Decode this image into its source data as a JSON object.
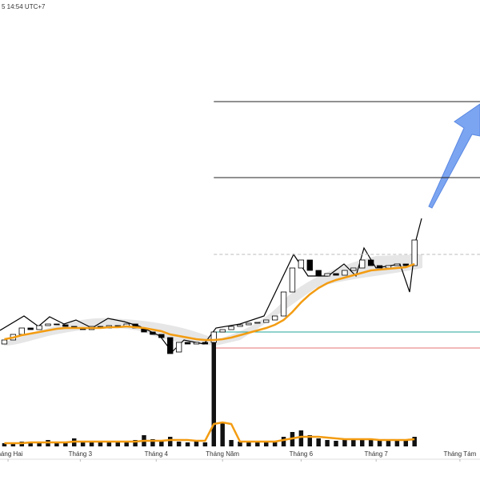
{
  "chart_data": {
    "type": "candlestick",
    "header": "5 14:54 UTC+7",
    "x": [
      0,
      1,
      2,
      3,
      4,
      5,
      6,
      7,
      8,
      9,
      10,
      11,
      12,
      13,
      14,
      15,
      16,
      17,
      18,
      19,
      20,
      21,
      22,
      23,
      24,
      25,
      26,
      27,
      28,
      29,
      30,
      31,
      32,
      33,
      34,
      35,
      36,
      37,
      38,
      39,
      40,
      41,
      42,
      43,
      44,
      45,
      46,
      47
    ],
    "open": [
      170,
      175,
      182,
      190,
      188,
      193,
      195,
      194,
      192,
      190,
      188,
      192,
      190,
      193,
      192,
      195,
      190,
      185,
      182,
      178,
      160,
      172,
      170,
      172,
      172,
      185,
      188,
      192,
      194,
      196,
      197,
      200,
      205,
      235,
      265,
      275,
      262,
      255,
      258,
      256,
      262,
      265,
      275,
      268,
      265,
      268,
      270,
      268
    ],
    "close": [
      175,
      182,
      190,
      188,
      193,
      195,
      194,
      192,
      190,
      188,
      192,
      190,
      193,
      192,
      195,
      190,
      185,
      182,
      178,
      158,
      172,
      170,
      172,
      170,
      185,
      188,
      192,
      194,
      196,
      197,
      200,
      205,
      235,
      265,
      275,
      262,
      255,
      258,
      256,
      262,
      265,
      275,
      268,
      265,
      268,
      270,
      268,
      300
    ],
    "ma": [
      176,
      178,
      181,
      183,
      185,
      187,
      189,
      190,
      190,
      190,
      190,
      190,
      191,
      191,
      192,
      191,
      190,
      188,
      186,
      182,
      180,
      178,
      176,
      175,
      175,
      176,
      178,
      181,
      184,
      187,
      190,
      194,
      200,
      210,
      222,
      232,
      240,
      246,
      250,
      253,
      256,
      259,
      262,
      263,
      264,
      265,
      266,
      270
    ],
    "volume": [
      4,
      5,
      6,
      5,
      4,
      8,
      5,
      6,
      10,
      7,
      6,
      5,
      7,
      6,
      5,
      8,
      14,
      9,
      7,
      12,
      6,
      5,
      6,
      5,
      140,
      30,
      8,
      6,
      5,
      6,
      7,
      6,
      12,
      18,
      20,
      14,
      10,
      8,
      7,
      8,
      9,
      8,
      10,
      7,
      8,
      9,
      7,
      12
    ],
    "volume_ma": [
      4,
      4,
      4,
      5,
      5,
      5,
      5,
      5,
      6,
      6,
      6,
      6,
      6,
      6,
      6,
      6,
      7,
      7,
      7,
      8,
      8,
      8,
      7,
      7,
      28,
      30,
      28,
      6,
      6,
      6,
      6,
      6,
      8,
      10,
      12,
      12,
      12,
      11,
      10,
      9,
      9,
      9,
      9,
      8,
      8,
      8,
      8,
      9
    ],
    "up_color": "#ffffff",
    "down_color": "#000000",
    "ma_color": "#f39c12",
    "price_lines": [
      {
        "value": 473,
        "color": "#222222"
      },
      {
        "value": 378,
        "color": "#222222"
      },
      {
        "value": 282,
        "color": "#bbbbbb"
      },
      {
        "value": 185,
        "color": "#26a69a"
      },
      {
        "value": 165,
        "color": "#e57373"
      }
    ],
    "xlim": [
      -0.5,
      54.5
    ],
    "ylim": [
      0,
      600
    ],
    "y2lim": [
      0,
      558
    ],
    "xticks": [
      {
        "value": 0.42,
        "label": "Tháng Hai"
      },
      {
        "value": 8.7,
        "label": "Tháng 3"
      },
      {
        "value": 17.4,
        "label": "Tháng 4"
      },
      {
        "value": 25,
        "label": "Tháng Năm"
      },
      {
        "value": 34,
        "label": "Tháng 6"
      },
      {
        "value": 42.6,
        "label": "Tháng 7"
      },
      {
        "value": 52.2,
        "label": "Tháng Tám"
      }
    ]
  }
}
